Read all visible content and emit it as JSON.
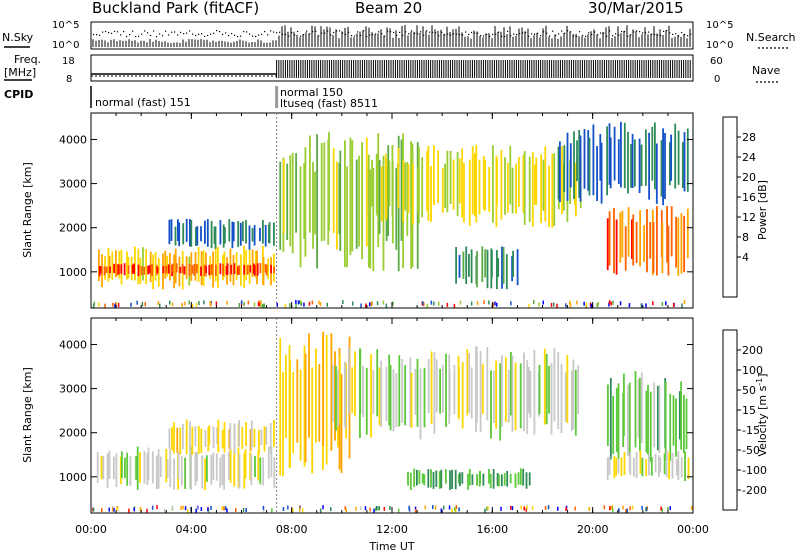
{
  "header": {
    "station": "Buckland Park (fitACF)",
    "beam": "Beam 20",
    "date": "30/Mar/2015"
  },
  "top_panels": {
    "nsky_label": "N.Sky",
    "nsearch_label": "N.Search",
    "noise_ticks": [
      "10^5",
      "10^0"
    ],
    "freq_label_1": "Freq.",
    "freq_label_2": "[MHz]",
    "freq_ticks": [
      "18",
      "8"
    ],
    "nave_label": "Nave",
    "nave_ticks": [
      "60",
      "0"
    ],
    "cpid_label": "CPID"
  },
  "cpid_segments": [
    {
      "lines": [
        "normal (fast) 151"
      ],
      "start_hour": 0
    },
    {
      "lines": [
        "normal 150",
        "ltuseq (fast) 8511"
      ],
      "start_hour": 7.4
    }
  ],
  "time_axis": {
    "label": "Time UT",
    "ticks": [
      "00:00",
      "04:00",
      "08:00",
      "12:00",
      "16:00",
      "20:00",
      "00:00"
    ],
    "range_hours": [
      0,
      24
    ]
  },
  "range_axis": {
    "label": "Slant Range [km]",
    "ticks": [
      "1000",
      "2000",
      "3000",
      "4000"
    ],
    "range_km": [
      180,
      4600
    ]
  },
  "power_colorbar": {
    "label": "Power [dB]",
    "ticks": [
      "4",
      "8",
      "12",
      "16",
      "20",
      "24",
      "28"
    ],
    "colors": [
      "#0000ff",
      "#1450c8",
      "#2e8b57",
      "#5aaa46",
      "#9acd32",
      "#ffd700",
      "#ffa500",
      "#ff6000",
      "#ff0000"
    ]
  },
  "velocity_colorbar": {
    "label": "Velocity [m s",
    "label_sup": "-1",
    "label_end": "]",
    "ticks": [
      "200",
      "100",
      "50",
      "15",
      "-15",
      "-50",
      "-100",
      "-200"
    ],
    "colors": [
      "#0000ff",
      "#1450c8",
      "#2e8b57",
      "#5cc83a",
      "#c8c8c8",
      "#ffd700",
      "#ffa500",
      "#ff6000",
      "#ff0000"
    ]
  },
  "chart_data": {
    "type": "heatmap",
    "title": "Buckland Park (fitACF)",
    "xlabel": "Time UT",
    "ylabel": "Slant Range [km]",
    "xlim": [
      0,
      24
    ],
    "ylim": [
      180,
      4600
    ],
    "grid": false,
    "panels": [
      {
        "name": "Power [dB]",
        "regions": [
          {
            "t": [
              0.2,
              7.3
            ],
            "r": [
              600,
              1600
            ],
            "value": 20
          },
          {
            "t": [
              0.2,
              7.3
            ],
            "r": [
              900,
              1200
            ],
            "value": 27
          },
          {
            "t": [
              3.0,
              7.3
            ],
            "r": [
              1500,
              2200
            ],
            "value": 8
          },
          {
            "t": [
              7.4,
              13.0
            ],
            "r": [
              1000,
              4200
            ],
            "value": 16
          },
          {
            "t": [
              11.0,
              19.5
            ],
            "r": [
              2000,
              3900
            ],
            "value": 18
          },
          {
            "t": [
              14.5,
              17.0
            ],
            "r": [
              600,
              1600
            ],
            "value": 10
          },
          {
            "t": [
              20.5,
              23.8
            ],
            "r": [
              900,
              2500
            ],
            "value": 25
          },
          {
            "t": [
              18.5,
              23.8
            ],
            "r": [
              2500,
              4400
            ],
            "value": 8
          }
        ]
      },
      {
        "name": "Velocity [m s-1]",
        "regions": [
          {
            "t": [
              0.2,
              7.3
            ],
            "r": [
              700,
              1700
            ],
            "value": 0
          },
          {
            "t": [
              3.0,
              7.3
            ],
            "r": [
              1500,
              2300
            ],
            "value": -40
          },
          {
            "t": [
              7.4,
              10.3
            ],
            "r": [
              1000,
              4300
            ],
            "value": -60
          },
          {
            "t": [
              9.5,
              19.5
            ],
            "r": [
              1800,
              4000
            ],
            "value": 0
          },
          {
            "t": [
              12.5,
              17.5
            ],
            "r": [
              700,
              1200
            ],
            "value": 60
          },
          {
            "t": [
              20.5,
              23.8
            ],
            "r": [
              1300,
              3400
            ],
            "value": 50
          },
          {
            "t": [
              20.5,
              23.8
            ],
            "r": [
              900,
              1600
            ],
            "value": 0
          }
        ]
      }
    ],
    "power_scale": [
      2,
      30
    ],
    "velocity_scale": [
      -200,
      200
    ]
  }
}
